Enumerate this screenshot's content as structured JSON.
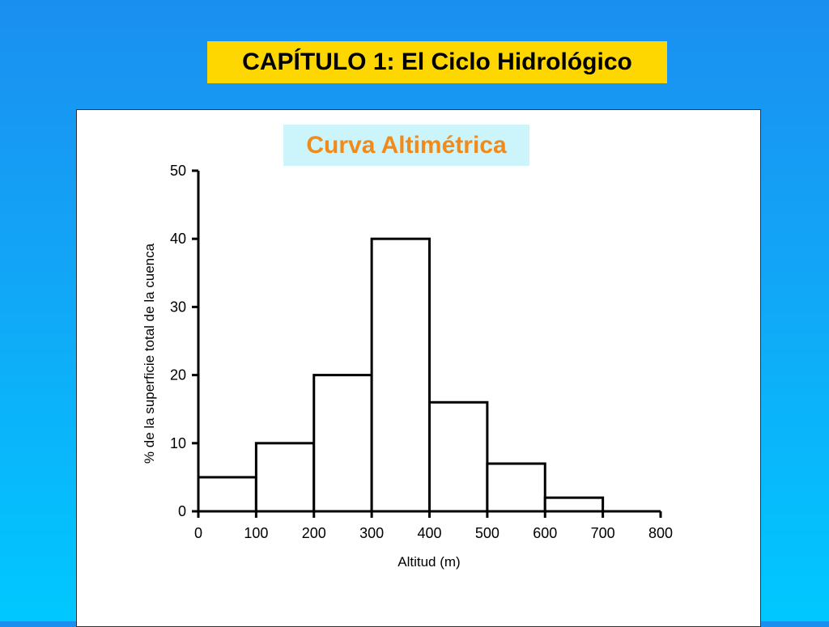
{
  "slide": {
    "title": "CAPÍTULO 1: El Ciclo Hidrológico"
  },
  "colors": {
    "title_bg": "#ffd700",
    "chart_title_bg": "#ccf5fb",
    "chart_title_text": "#f28a1a",
    "background_top": "#1a8ff0",
    "background_bottom": "#00c8ff"
  },
  "chart_data": {
    "type": "bar",
    "title": "Curva Altimétrica",
    "xlabel": "Altitud (m)",
    "ylabel": "% de la superficie total de la cuenca",
    "xlim": [
      0,
      800
    ],
    "ylim": [
      0,
      50
    ],
    "xticks": [
      0,
      100,
      200,
      300,
      400,
      500,
      600,
      700,
      800
    ],
    "yticks": [
      0,
      10,
      20,
      30,
      40,
      50
    ],
    "bins": [
      {
        "from": 0,
        "to": 100,
        "value": 5
      },
      {
        "from": 100,
        "to": 200,
        "value": 10
      },
      {
        "from": 200,
        "to": 300,
        "value": 20
      },
      {
        "from": 300,
        "to": 400,
        "value": 40
      },
      {
        "from": 400,
        "to": 500,
        "value": 16
      },
      {
        "from": 500,
        "to": 600,
        "value": 7
      },
      {
        "from": 600,
        "to": 700,
        "value": 2
      }
    ],
    "grid": false,
    "legend": false
  }
}
